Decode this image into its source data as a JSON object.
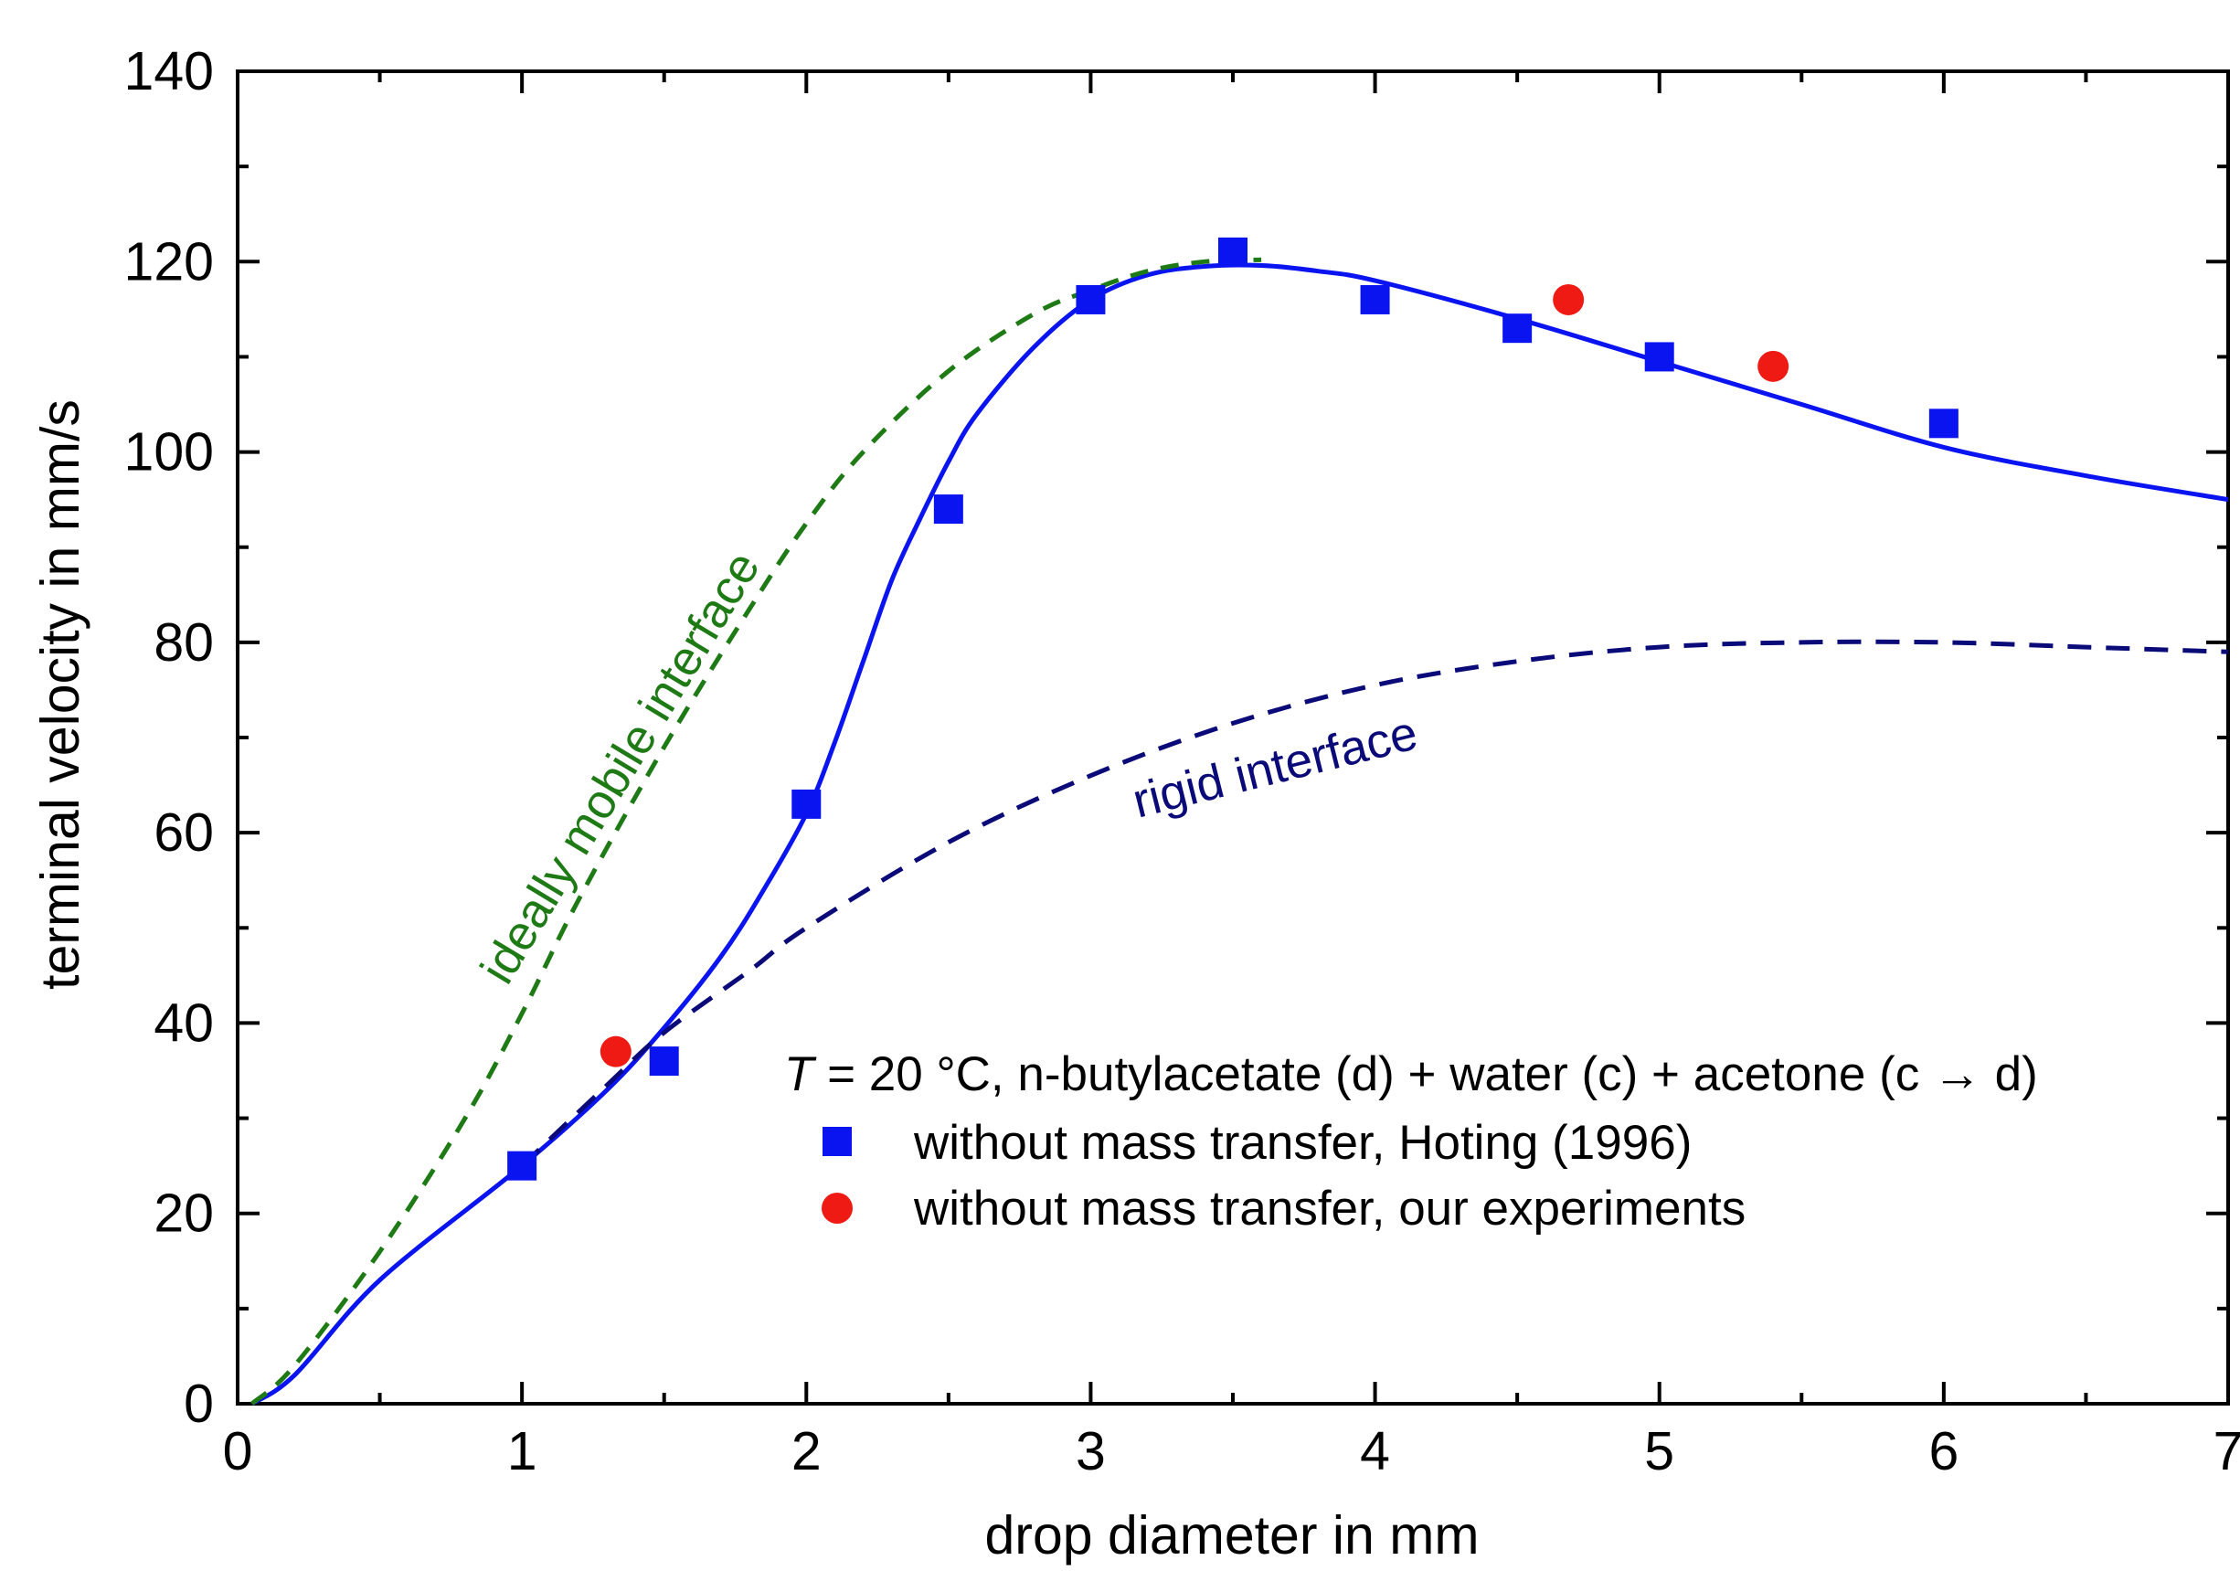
{
  "chart_data": {
    "type": "line",
    "xlabel": "drop diameter in mm",
    "ylabel": "terminal velocity in mm/s",
    "xlim": [
      0,
      7
    ],
    "ylim": [
      0,
      140
    ],
    "x_ticks": [
      "0",
      "1",
      "2",
      "3",
      "4",
      "5",
      "6",
      "7"
    ],
    "y_ticks": [
      "0",
      "20",
      "40",
      "60",
      "80",
      "100",
      "120",
      "140"
    ],
    "grid": false,
    "legend_position": "lower-right",
    "legend_title": {
      "var": "T",
      "text": " = 20 °C, n-butylacetate (d) + water (c) + acetone (c → d)"
    },
    "series": [
      {
        "name": "without mass transfer, Hoting (1996)",
        "style": "markers-square",
        "color": "#0a14f0",
        "x": [
          1.0,
          1.5,
          2.0,
          2.5,
          3.0,
          3.5,
          4.0,
          4.5,
          5.0,
          6.0
        ],
        "y": [
          25,
          36,
          63,
          94,
          116,
          121,
          116,
          113,
          110,
          103
        ]
      },
      {
        "name": "without mass transfer, our experiments",
        "style": "markers-circle",
        "color": "#f01a14",
        "x": [
          1.33,
          4.68,
          5.4
        ],
        "y": [
          37,
          116,
          109
        ]
      },
      {
        "name": "",
        "style": "solid",
        "color": "#0a14f0",
        "x": [
          0.05,
          0.2,
          0.5,
          1.0,
          1.3,
          1.5,
          1.7,
          1.85,
          2.0,
          2.1,
          2.2,
          2.3,
          2.4,
          2.5,
          2.6,
          2.8,
          3.0,
          3.2,
          3.4,
          3.6,
          3.8,
          4.0,
          4.5,
          5.0,
          5.5,
          6.0,
          6.5,
          7.0
        ],
        "y": [
          0,
          3,
          13,
          25,
          33,
          39.5,
          47,
          54,
          62,
          69.5,
          78,
          86.5,
          93,
          99,
          104,
          111,
          116,
          118.6,
          119.5,
          119.6,
          119,
          118,
          114,
          109.5,
          105,
          100.5,
          97.5,
          95
        ]
      },
      {
        "name": "",
        "style": "dashed",
        "color": "#1e7a14",
        "x": [
          0.05,
          0.2,
          0.5,
          0.8,
          1.0,
          1.2,
          1.5,
          1.8,
          2.0,
          2.2,
          2.5,
          2.8,
          3.0,
          3.2,
          3.4,
          3.6
        ],
        "y": [
          0,
          4,
          16,
          30,
          41,
          53,
          69,
          83.5,
          92.5,
          100,
          108.5,
          114.5,
          117,
          119,
          120,
          120.2
        ]
      },
      {
        "name": "",
        "style": "dashed",
        "color": "#0a0a78",
        "x": [
          1.0,
          1.3,
          1.5,
          1.8,
          2.0,
          2.5,
          3.0,
          3.5,
          4.0,
          4.5,
          5.0,
          5.5,
          6.0,
          6.5,
          7.0
        ],
        "y": [
          25,
          33.5,
          39,
          45.5,
          50,
          59,
          66,
          71.5,
          75.5,
          78,
          79.5,
          80,
          80,
          79.5,
          79
        ]
      }
    ],
    "annotations": [
      {
        "text": "ideally mobile interface",
        "color": "#1e7a14"
      },
      {
        "text": "rigid interface",
        "color": "#0a0a78"
      }
    ]
  }
}
